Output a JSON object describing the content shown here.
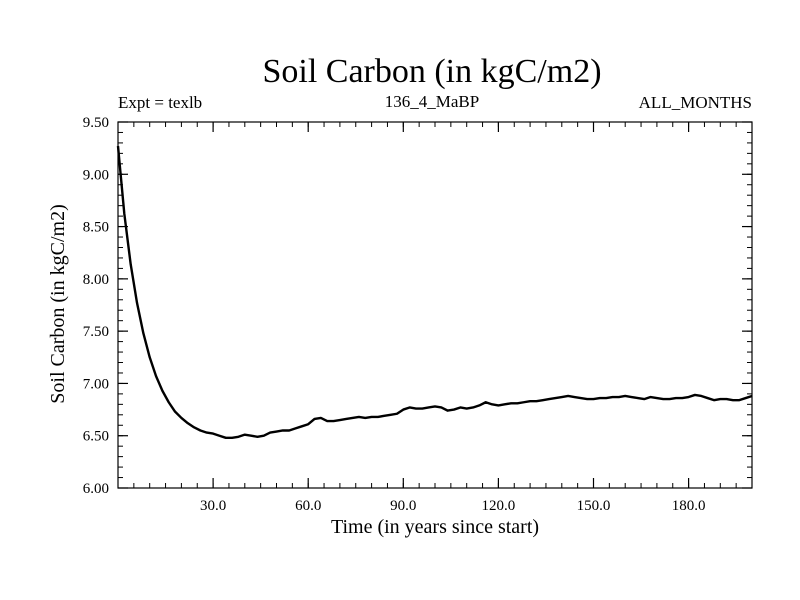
{
  "chart_data": {
    "type": "line",
    "title": "Soil Carbon (in kgC/m2)",
    "subtitle_left": "Expt = texlb",
    "subtitle_center": "136_4_MaBP",
    "subtitle_right": "ALL_MONTHS",
    "xlabel": "Time (in years since start)",
    "ylabel": "Soil Carbon (in kgC/m2)",
    "xlim": [
      0,
      200
    ],
    "ylim": [
      6.0,
      9.5
    ],
    "x_ticks": [
      30,
      60,
      90,
      120,
      150,
      180
    ],
    "x_tick_labels": [
      "30.0",
      "60.0",
      "90.0",
      "120.0",
      "150.0",
      "180.0"
    ],
    "y_ticks": [
      6.0,
      6.5,
      7.0,
      7.5,
      8.0,
      8.5,
      9.0,
      9.5
    ],
    "y_tick_labels": [
      "6.00",
      "6.50",
      "7.00",
      "7.50",
      "8.00",
      "8.50",
      "9.00",
      "9.50"
    ],
    "grid": false,
    "series": [
      {
        "name": "Soil Carbon",
        "color": "#000000",
        "x": [
          0,
          2,
          4,
          6,
          8,
          10,
          12,
          14,
          16,
          18,
          20,
          22,
          24,
          26,
          28,
          30,
          32,
          34,
          36,
          38,
          40,
          42,
          44,
          46,
          48,
          50,
          52,
          54,
          56,
          58,
          60,
          62,
          64,
          66,
          68,
          70,
          72,
          74,
          76,
          78,
          80,
          82,
          84,
          86,
          88,
          90,
          92,
          94,
          96,
          98,
          100,
          102,
          104,
          106,
          108,
          110,
          112,
          114,
          116,
          118,
          120,
          122,
          124,
          126,
          128,
          130,
          132,
          134,
          136,
          138,
          140,
          142,
          144,
          146,
          148,
          150,
          152,
          154,
          156,
          158,
          160,
          162,
          164,
          166,
          168,
          170,
          172,
          174,
          176,
          178,
          180,
          182,
          184,
          186,
          188,
          190,
          192,
          194,
          196,
          198,
          200
        ],
        "values": [
          9.27,
          8.62,
          8.14,
          7.77,
          7.48,
          7.25,
          7.07,
          6.93,
          6.82,
          6.73,
          6.67,
          6.62,
          6.58,
          6.55,
          6.53,
          6.52,
          6.5,
          6.48,
          6.48,
          6.49,
          6.51,
          6.5,
          6.49,
          6.5,
          6.53,
          6.54,
          6.55,
          6.55,
          6.57,
          6.59,
          6.61,
          6.66,
          6.67,
          6.64,
          6.64,
          6.65,
          6.66,
          6.67,
          6.68,
          6.67,
          6.68,
          6.68,
          6.69,
          6.7,
          6.71,
          6.75,
          6.77,
          6.76,
          6.76,
          6.77,
          6.78,
          6.77,
          6.74,
          6.75,
          6.77,
          6.76,
          6.77,
          6.79,
          6.82,
          6.8,
          6.79,
          6.8,
          6.81,
          6.81,
          6.82,
          6.83,
          6.83,
          6.84,
          6.85,
          6.86,
          6.87,
          6.88,
          6.87,
          6.86,
          6.85,
          6.85,
          6.86,
          6.86,
          6.87,
          6.87,
          6.88,
          6.87,
          6.86,
          6.85,
          6.87,
          6.86,
          6.85,
          6.85,
          6.86,
          6.86,
          6.87,
          6.89,
          6.88,
          6.86,
          6.84,
          6.85,
          6.85,
          6.84,
          6.84,
          6.86,
          6.88
        ]
      }
    ]
  }
}
